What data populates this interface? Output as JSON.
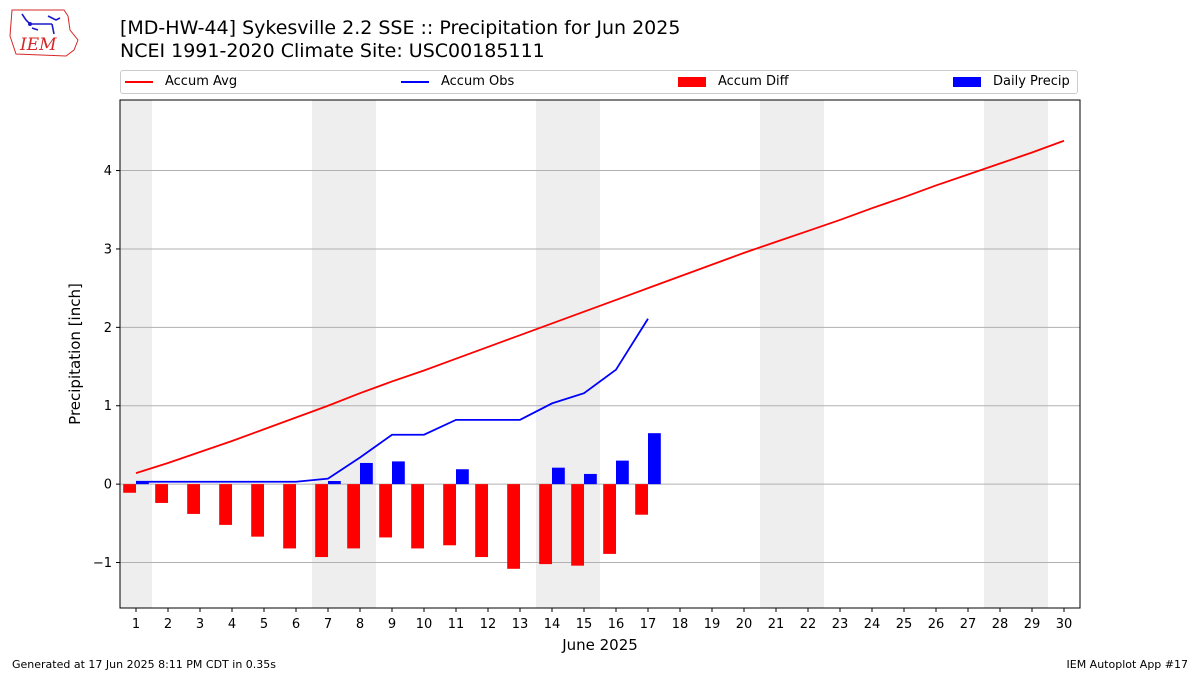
{
  "header": {
    "title_line1": "[MD-HW-44] Sykesville 2.2 SSE :: Precipitation for Jun 2025",
    "title_line2": "NCEI 1991-2020 Climate Site: USC00185111"
  },
  "logo": {
    "text": "IEM",
    "color": "#d62728"
  },
  "footer": {
    "left": "Generated at 17 Jun 2025 8:11 PM CDT in 0.35s",
    "right": "IEM Autoplot App #17"
  },
  "chart_data": {
    "type": "bar",
    "xlabel": "June 2025",
    "ylabel": "Precipitation [inch]",
    "xlim": [
      0.5,
      30.5
    ],
    "ylim": [
      -1.58,
      4.9
    ],
    "x_ticks": [
      1,
      2,
      3,
      4,
      5,
      6,
      7,
      8,
      9,
      10,
      11,
      12,
      13,
      14,
      15,
      16,
      17,
      18,
      19,
      20,
      21,
      22,
      23,
      24,
      25,
      26,
      27,
      28,
      29,
      30
    ],
    "y_ticks": [
      -1,
      0,
      1,
      2,
      3,
      4
    ],
    "grid": "horizontal",
    "legend_position": "top",
    "weekend_shading_days": [
      [
        0.5,
        1.5
      ],
      [
        6.5,
        8.5
      ],
      [
        13.5,
        15.5
      ],
      [
        20.5,
        22.5
      ],
      [
        27.5,
        29.5
      ]
    ],
    "series": [
      {
        "name": "Accum Avg",
        "kind": "line",
        "color": "#ff0000",
        "x": [
          1,
          2,
          3,
          4,
          5,
          6,
          7,
          8,
          9,
          10,
          11,
          12,
          13,
          14,
          15,
          16,
          17,
          18,
          19,
          20,
          21,
          22,
          23,
          24,
          25,
          26,
          27,
          28,
          29,
          30
        ],
        "values": [
          0.14,
          0.27,
          0.41,
          0.55,
          0.7,
          0.85,
          1.0,
          1.16,
          1.31,
          1.45,
          1.6,
          1.75,
          1.9,
          2.05,
          2.2,
          2.35,
          2.5,
          2.65,
          2.8,
          2.95,
          3.09,
          3.23,
          3.37,
          3.52,
          3.66,
          3.81,
          3.95,
          4.09,
          4.23,
          4.38
        ]
      },
      {
        "name": "Accum Obs",
        "kind": "line",
        "color": "#0000ff",
        "x": [
          1,
          2,
          3,
          4,
          5,
          6,
          7,
          8,
          9,
          10,
          11,
          12,
          13,
          14,
          15,
          16,
          17
        ],
        "values": [
          0.03,
          0.03,
          0.03,
          0.03,
          0.03,
          0.03,
          0.07,
          0.34,
          0.63,
          0.63,
          0.82,
          0.82,
          0.82,
          1.03,
          1.16,
          1.46,
          2.11
        ]
      },
      {
        "name": "Accum Diff",
        "kind": "bar",
        "color": "#ff0000",
        "x": [
          1,
          2,
          3,
          4,
          5,
          6,
          7,
          8,
          9,
          10,
          11,
          12,
          13,
          14,
          15,
          16,
          17
        ],
        "values": [
          -0.11,
          -0.24,
          -0.38,
          -0.52,
          -0.67,
          -0.82,
          -0.93,
          -0.82,
          -0.68,
          -0.82,
          -0.78,
          -0.93,
          -1.08,
          -1.02,
          -1.04,
          -0.89,
          -0.39
        ]
      },
      {
        "name": "Daily Precip",
        "kind": "bar",
        "color": "#0000ff",
        "x": [
          1,
          2,
          3,
          4,
          5,
          6,
          7,
          8,
          9,
          10,
          11,
          12,
          13,
          14,
          15,
          16,
          17
        ],
        "values": [
          0.03,
          0,
          0,
          0,
          0,
          0,
          0.04,
          0.27,
          0.29,
          0,
          0.19,
          0,
          0,
          0.21,
          0.13,
          0.3,
          0.65
        ]
      }
    ]
  }
}
